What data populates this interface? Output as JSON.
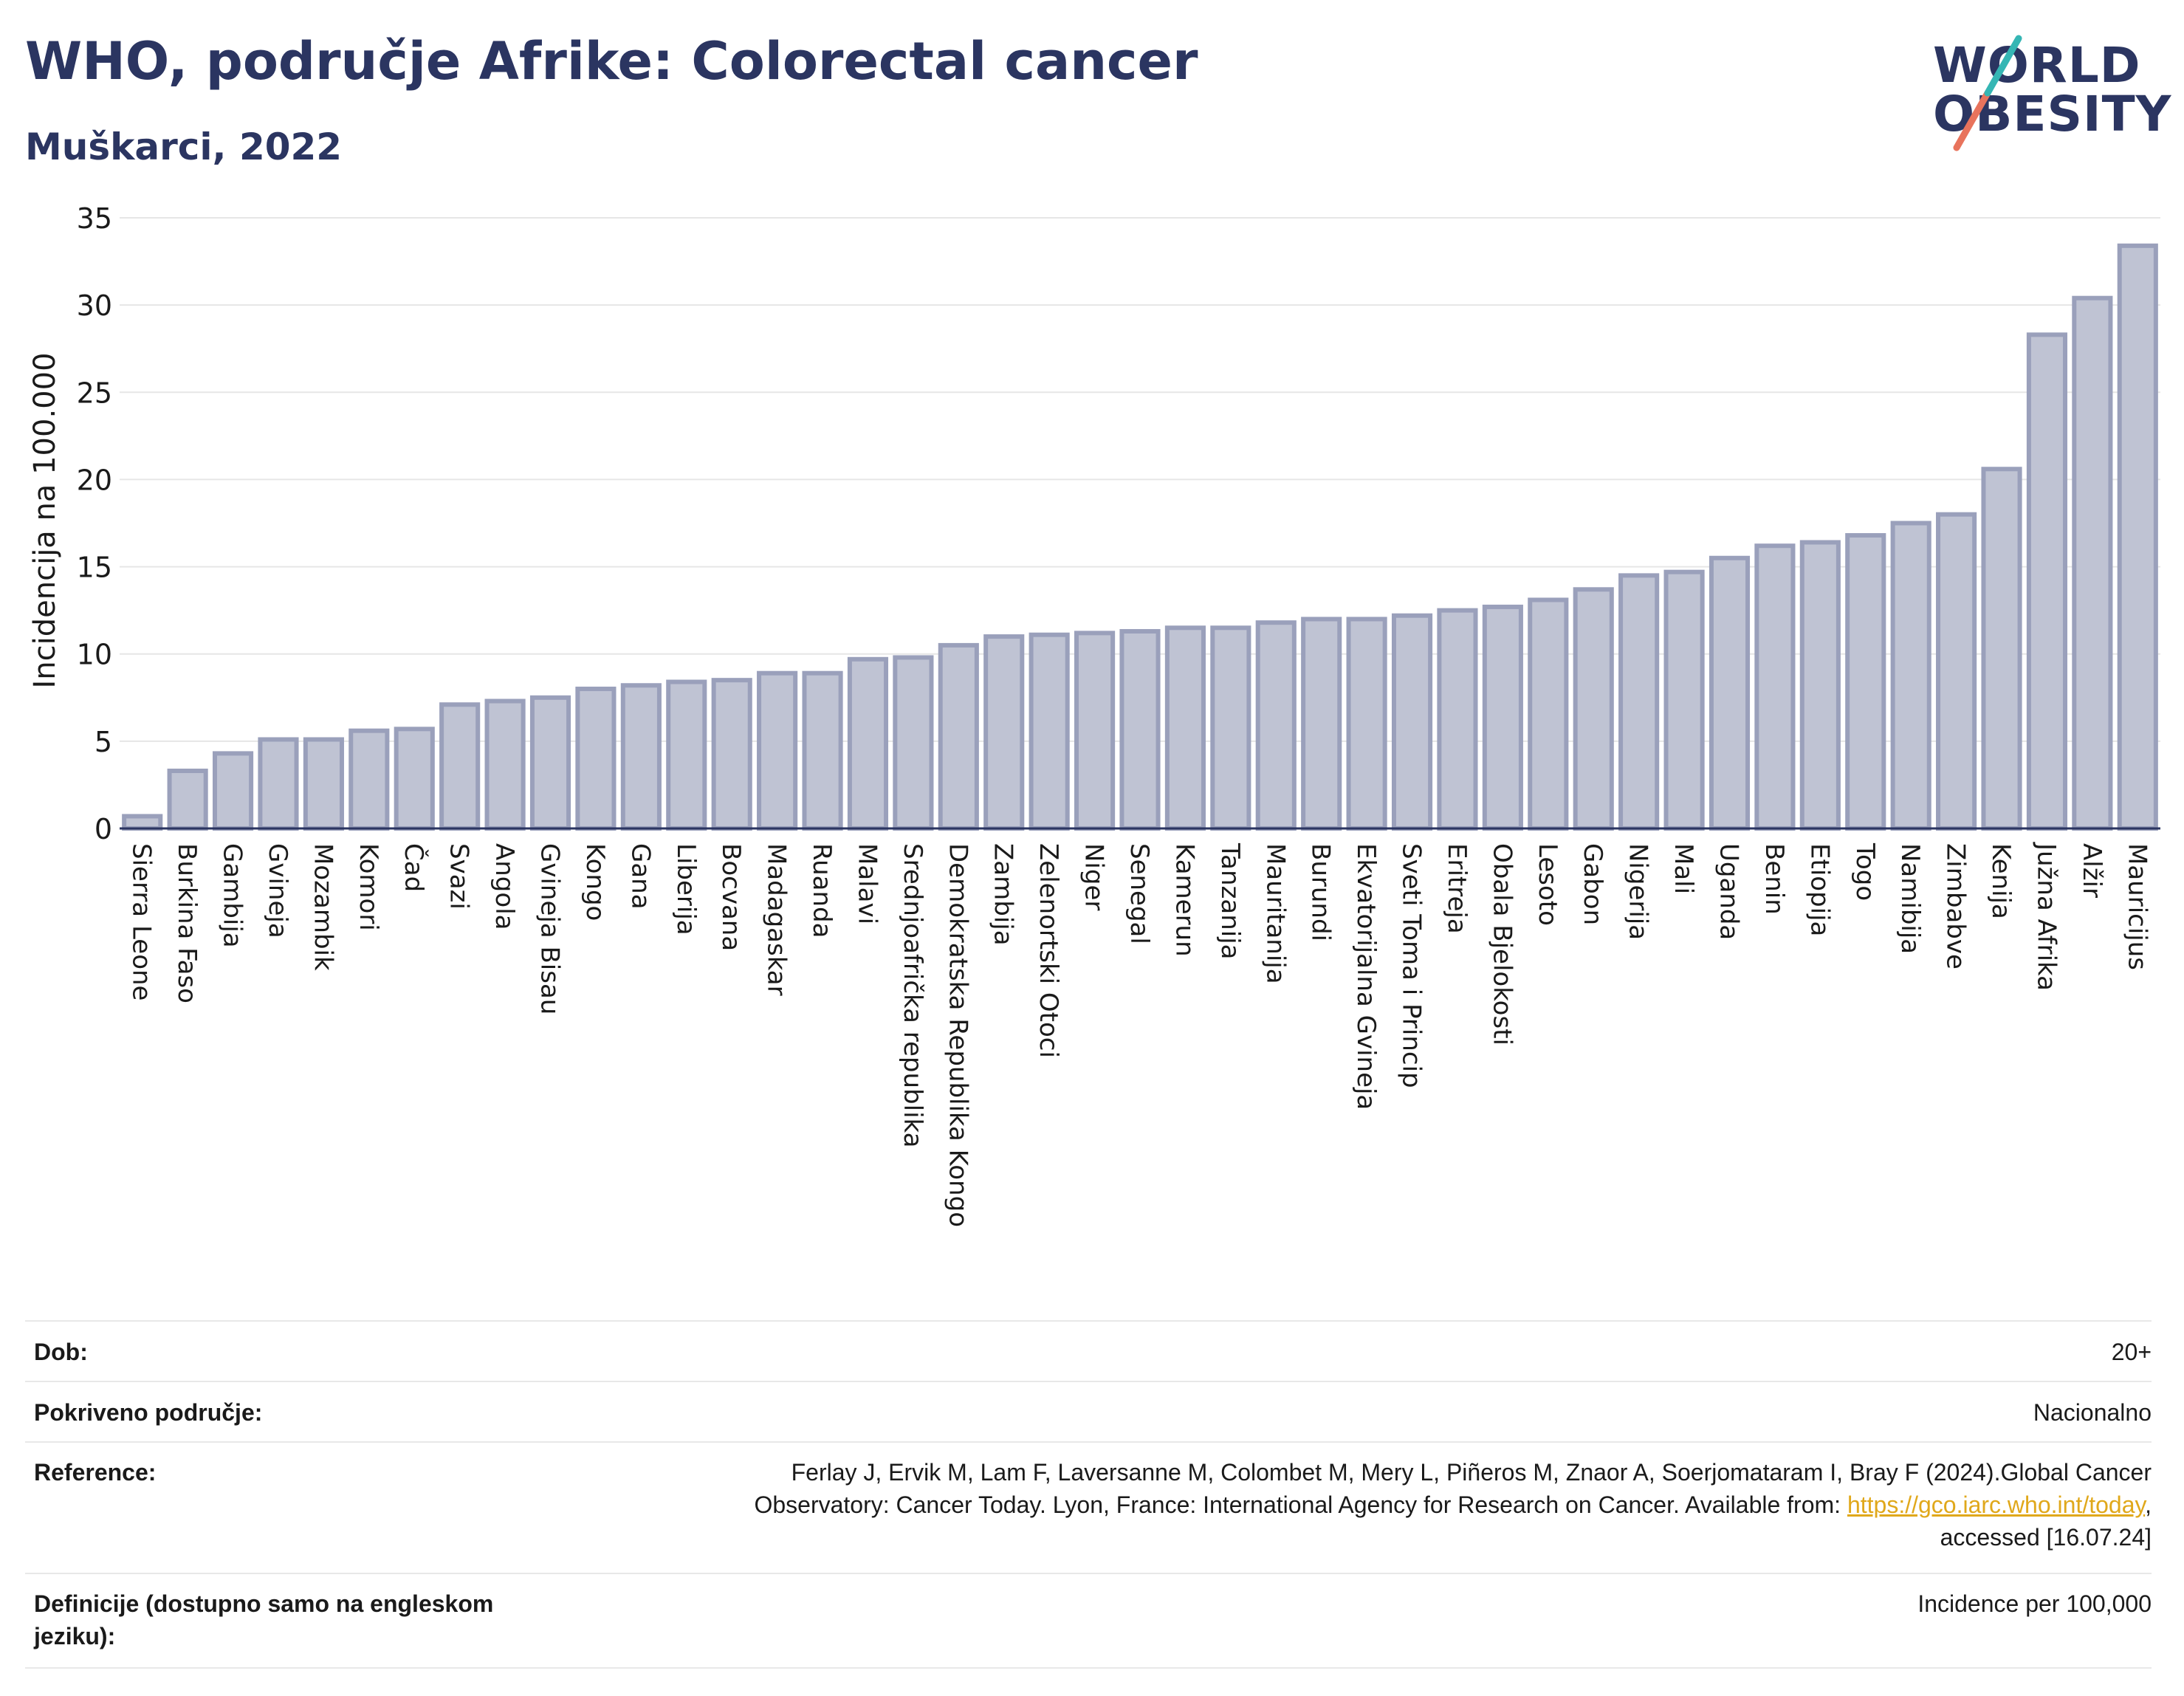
{
  "header": {
    "title": "WHO, područje Afrike: Colorectal cancer",
    "subtitle": "Muškarci, 2022",
    "logo_line1": "WORLD",
    "logo_line2": "OBESITY"
  },
  "colors": {
    "title": "#2b3561",
    "bar_fill": "#bfc3d3",
    "bar_stroke": "#9aa0bb",
    "grid": "#e6e6e6",
    "axis": "#2b3561",
    "logo_slash_teal": "#35b6b4",
    "logo_slash_coral": "#e8735c",
    "link": "#e0a81b"
  },
  "chart_data": {
    "type": "bar",
    "title": "WHO, područje Afrike: Colorectal cancer",
    "subtitle": "Muškarci, 2022",
    "xlabel": "",
    "ylabel": "Incidencija na 100.000",
    "ylim": [
      0,
      35
    ],
    "yticks": [
      0,
      5,
      10,
      15,
      20,
      25,
      30,
      35
    ],
    "grid": true,
    "categories": [
      "Sierra Leone",
      "Burkina Faso",
      "Gambija",
      "Gvineja",
      "Mozambik",
      "Komori",
      "Čad",
      "Svazi",
      "Angola",
      "Gvineja Bisau",
      "Kongo",
      "Gana",
      "Liberija",
      "Bocvana",
      "Madagaskar",
      "Ruanda",
      "Malavi",
      "Srednjoafrička republika",
      "Demokratska Republika Kongo",
      "Zambija",
      "Zelenortski Otoci",
      "Niger",
      "Senegal",
      "Kamerun",
      "Tanzanija",
      "Mauritanija",
      "Burundi",
      "Ekvatorijalna Gvineja",
      "Sveti Toma i Princip",
      "Eritreja",
      "Obala Bjelokosti",
      "Lesoto",
      "Gabon",
      "Nigerija",
      "Mali",
      "Uganda",
      "Benin",
      "Etiopija",
      "Togo",
      "Namibija",
      "Zimbabve",
      "Kenija",
      "Južna Afrika",
      "Alžir",
      "Mauricijus"
    ],
    "values": [
      0.7,
      3.3,
      4.3,
      5.1,
      5.1,
      5.6,
      5.7,
      7.1,
      7.3,
      7.5,
      8.0,
      8.2,
      8.4,
      8.5,
      8.9,
      8.9,
      9.7,
      9.8,
      10.5,
      11.0,
      11.1,
      11.2,
      11.3,
      11.5,
      11.5,
      11.8,
      12.0,
      12.0,
      12.2,
      12.5,
      12.7,
      13.1,
      13.7,
      14.5,
      14.7,
      15.5,
      16.2,
      16.4,
      16.8,
      17.5,
      18.0,
      20.6,
      28.3,
      30.4,
      33.4
    ]
  },
  "meta": {
    "rows": [
      {
        "label": "Dob:",
        "value": "20+"
      },
      {
        "label": "Pokriveno područje:",
        "value": "Nacionalno"
      },
      {
        "label": "Reference:",
        "value_line1": "Ferlay J, Ervik M, Lam F, Laversanne M, Colombet M, Mery L, Piñeros M, Znaor A, Soerjomataram I, Bray F (2024).Global Cancer",
        "value_line2_pre": "Observatory: Cancer Today. Lyon, France: International Agency for Research on Cancer. Available from: ",
        "value_link": "https://gco.iarc.who.int/today",
        "value_line2_post": ",",
        "value_line3": "accessed [16.07.24]"
      },
      {
        "label_line1": "Definicije (dostupno samo na engleskom",
        "label_line2": "jeziku):",
        "value": "Incidence per 100,000"
      }
    ]
  }
}
